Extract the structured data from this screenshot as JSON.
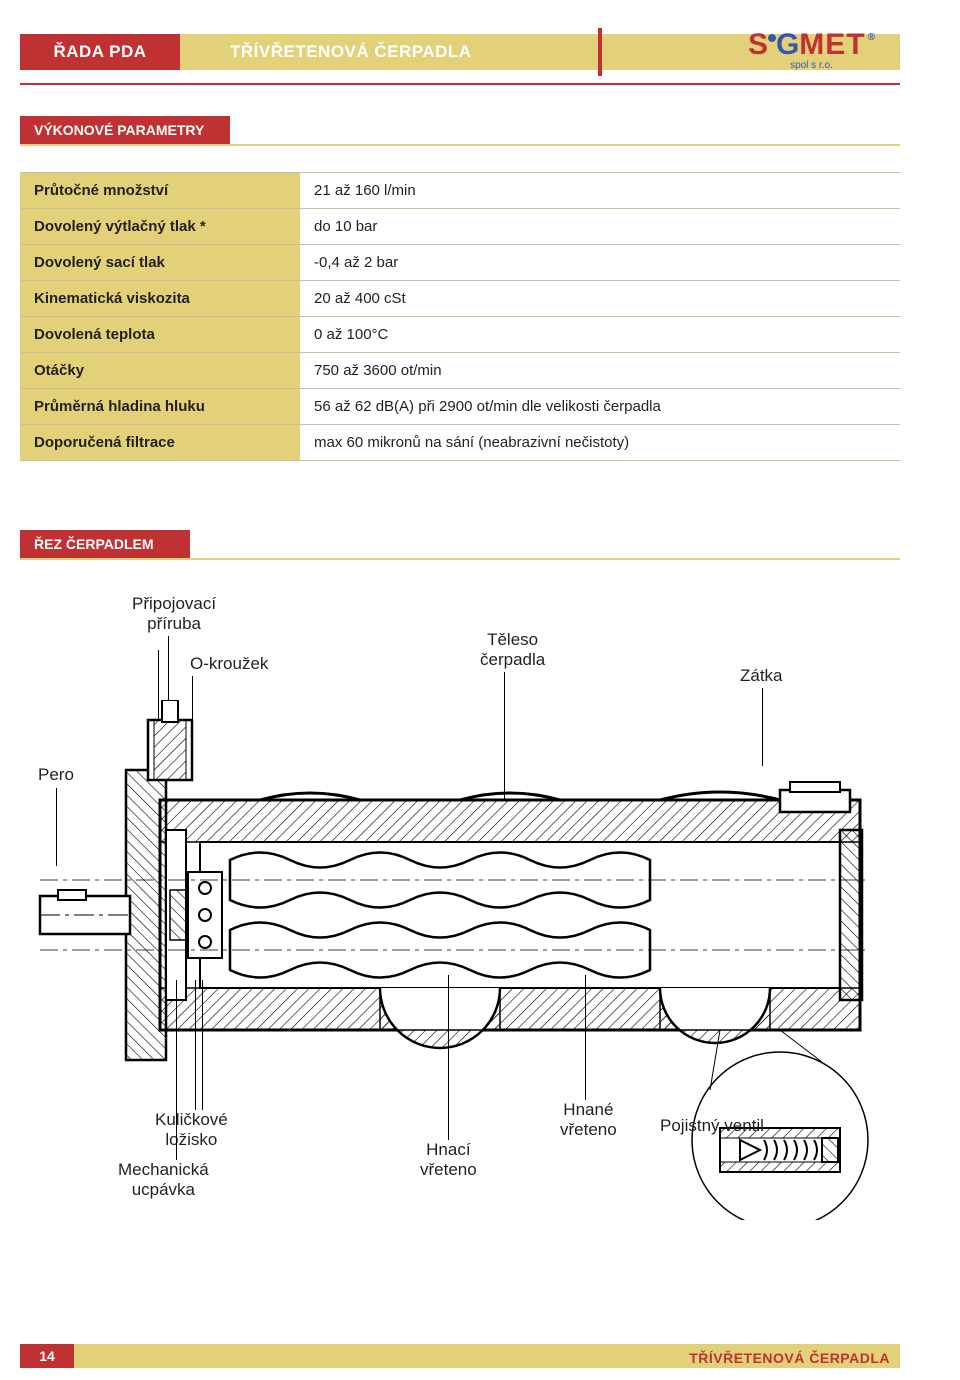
{
  "header": {
    "series": "ŘADA PDA",
    "subtitle": "TŘÍVŘETENOVÁ ČERPADLA",
    "logo_main_1": "S",
    "logo_main_2": "i",
    "logo_main_3": "G",
    "logo_main_4": "MET",
    "logo_sub": "spol s r.o."
  },
  "sections": {
    "perf": "VÝKONOVÉ PARAMETRY",
    "cut": "ŘEZ ČERPADLEM"
  },
  "params": {
    "rows": [
      {
        "k": "Průtočné množství",
        "v": "21 až 160 l/min"
      },
      {
        "k": "Dovolený výtlačný tlak *",
        "v": "do 10 bar"
      },
      {
        "k": "Dovolený sací tlak",
        "v": "-0,4 až 2 bar"
      },
      {
        "k": "Kinematická viskozita",
        "v": "20 až 400 cSt"
      },
      {
        "k": "Dovolená teplota",
        "v": "0 až 100°C"
      },
      {
        "k": "Otáčky",
        "v": "750 až 3600 ot/min"
      },
      {
        "k": "Průměrná hladina hluku",
        "v": "56 až 62 dB(A) při 2900 ot/min dle velikosti čerpadla"
      },
      {
        "k": "Doporučená filtrace",
        "v": "max 60 mikronů na sání (neabrazivní nečistoty)"
      }
    ]
  },
  "labels": {
    "flange": "Připojovací\npříruba",
    "oring": "O-kroužek",
    "body": "Těleso\nčerpadla",
    "plug": "Zátka",
    "key": "Pero",
    "bearing": "Kuličkové\nložisko",
    "seal": "Mechanická\nucpávka",
    "drive": "Hnací\nvřeteno",
    "driven": "Hnané\nvřeteno",
    "valve": "Pojistný ventil"
  },
  "footer": {
    "page": "14",
    "text": "TŘÍVŘETENOVÁ ČERPADLA"
  },
  "colors": {
    "brand_red": "#bf3133",
    "brand_blue": "#3a57a6",
    "khaki": "#e3d17a",
    "text": "#231f20"
  }
}
